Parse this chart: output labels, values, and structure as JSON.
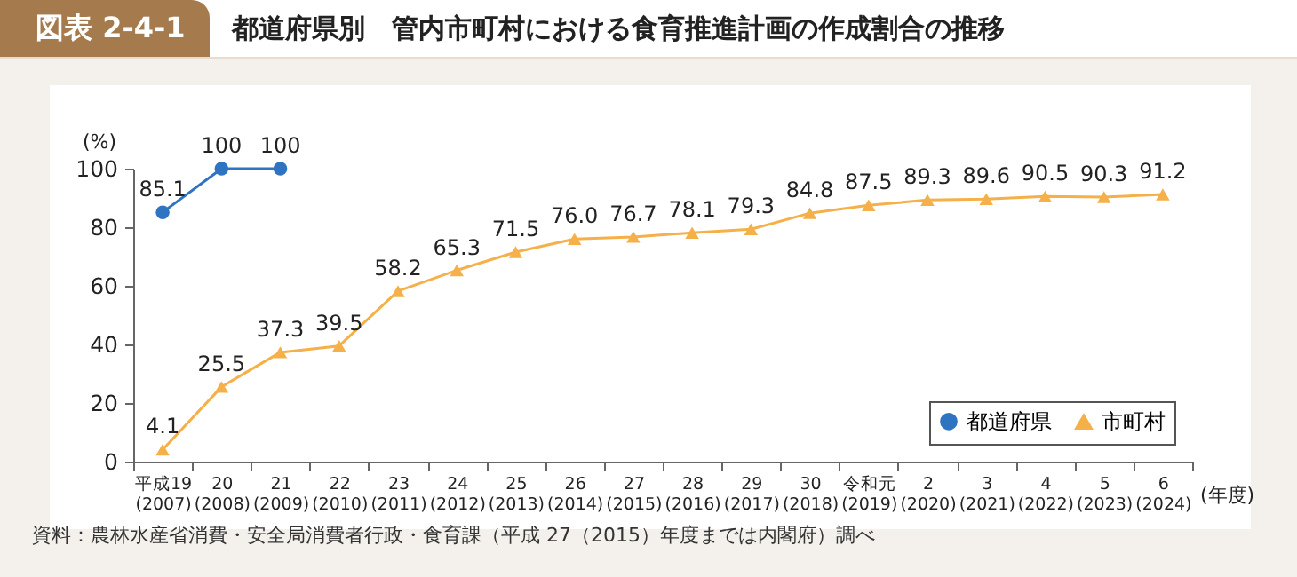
{
  "chart_data": {
    "type": "line",
    "title": "都道府県別　管内市町村における食育推進計画の作成割合の推移",
    "annotations": [
      "図表 2-4-1",
      "資料：農林水産省消費・安全局消費者行政・食育課（平成 27（2015）年度までは内閣府）調べ"
    ],
    "categories": [
      "平成19\n(2007)",
      "20\n(2008)",
      "21\n(2009)",
      "22\n(2010)",
      "23\n(2011)",
      "24\n(2012)",
      "25\n(2013)",
      "26\n(2014)",
      "27\n(2015)",
      "28\n(2016)",
      "29\n(2017)",
      "30\n(2018)",
      "令和元\n(2019)",
      "2\n(2020)",
      "3\n(2021)",
      "4\n(2022)",
      "5\n(2023)",
      "6\n(2024)"
    ],
    "xlabel": "(年度)",
    "ylabel": "(%)",
    "ylim": [
      0,
      100
    ],
    "yticks": [
      0,
      20,
      40,
      60,
      80,
      100
    ],
    "series": [
      {
        "name": "都道府県",
        "color": "#2f74c0",
        "marker": "circle",
        "values": [
          85.1,
          100,
          100,
          null,
          null,
          null,
          null,
          null,
          null,
          null,
          null,
          null,
          null,
          null,
          null,
          null,
          null,
          null
        ],
        "value_labels": [
          "85.1",
          "100",
          "100",
          null,
          null,
          null,
          null,
          null,
          null,
          null,
          null,
          null,
          null,
          null,
          null,
          null,
          null,
          null
        ]
      },
      {
        "name": "市町村",
        "color": "#f5b04a",
        "marker": "triangle",
        "values": [
          4.1,
          25.5,
          37.3,
          39.5,
          58.2,
          65.3,
          71.5,
          76.0,
          76.7,
          78.1,
          79.3,
          84.8,
          87.5,
          89.3,
          89.6,
          90.5,
          90.3,
          91.2
        ],
        "value_labels": [
          "4.1",
          "25.5",
          "37.3",
          "39.5",
          "58.2",
          "65.3",
          "71.5",
          "76.0",
          "76.7",
          "78.1",
          "79.3",
          "84.8",
          "87.5",
          "89.3",
          "89.6",
          "90.5",
          "90.3",
          "91.2"
        ]
      }
    ],
    "legend": "bottom right",
    "grid": false,
    "line_style": "solid"
  }
}
